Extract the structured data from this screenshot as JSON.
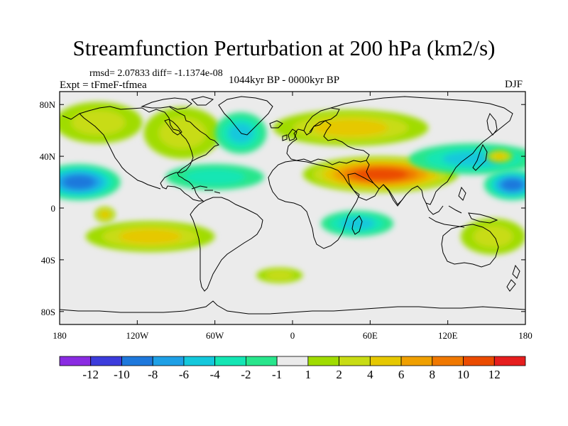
{
  "title": "Streamfunction Perturbation at 200 hPa (km2/s)",
  "stats_line": "rmsd= 2.07833  diff= -1.1374e-08",
  "experiment_label": "Expt = tFmeF-tfmea",
  "period_label": "1044kyr BP - 0000kyr BP",
  "season_label": "DJF",
  "map": {
    "projection": "cylindrical equidistant",
    "lon_ticks": [
      {
        "value": -180,
        "label": "180"
      },
      {
        "value": -120,
        "label": "120W"
      },
      {
        "value": -60,
        "label": "60W"
      },
      {
        "value": 0,
        "label": "0"
      },
      {
        "value": 60,
        "label": "60E"
      },
      {
        "value": 120,
        "label": "120E"
      },
      {
        "value": 180,
        "label": "180"
      }
    ],
    "lat_ticks": [
      {
        "value": 80,
        "label": "80N"
      },
      {
        "value": 40,
        "label": "40N"
      },
      {
        "value": 0,
        "label": "0"
      },
      {
        "value": -40,
        "label": "40S"
      },
      {
        "value": -80,
        "label": "80S"
      }
    ],
    "lat_range": [
      -90,
      90
    ],
    "lon_range": [
      -180,
      180
    ],
    "anomalies": [
      {
        "name": "north-pacific-west-high",
        "lon": -150,
        "lat": 66,
        "rlon": 34,
        "rlat": 16,
        "value": 2
      },
      {
        "name": "north-america-high",
        "lon": -85,
        "lat": 58,
        "rlon": 30,
        "rlat": 20,
        "value": 2
      },
      {
        "name": "north-atlantic-low",
        "lon": -40,
        "lat": 58,
        "rlon": 20,
        "rlat": 16,
        "value": -4
      },
      {
        "name": "subtropical-pacific-low",
        "lon": -165,
        "lat": 20,
        "rlon": 32,
        "rlat": 14,
        "value": -8
      },
      {
        "name": "tropical-atlantic-low",
        "lon": -60,
        "lat": 24,
        "rlon": 38,
        "rlat": 10,
        "value": -3
      },
      {
        "name": "south-pacific-high",
        "lon": -145,
        "lat": -5,
        "rlon": 8,
        "rlat": 6,
        "value": 4
      },
      {
        "name": "south-pacific-band-high",
        "lon": -110,
        "lat": -22,
        "rlon": 50,
        "rlat": 12,
        "value": 4
      },
      {
        "name": "southern-ocean-atlantic-high",
        "lon": -10,
        "lat": -52,
        "rlon": 18,
        "rlat": 6,
        "value": 2
      },
      {
        "name": "eurasia-high",
        "lon": 45,
        "lat": 62,
        "rlon": 60,
        "rlat": 14,
        "value": 4
      },
      {
        "name": "west-asia-high",
        "lon": 68,
        "lat": 26,
        "rlon": 60,
        "rlat": 14,
        "value": 10
      },
      {
        "name": "north-pacific-east-low",
        "lon": 140,
        "lat": 38,
        "rlon": 50,
        "rlat": 12,
        "value": -4
      },
      {
        "name": "west-pacific-tropical-low",
        "lon": 170,
        "lat": 18,
        "rlon": 22,
        "rlat": 12,
        "value": -8
      },
      {
        "name": "east-asia-high",
        "lon": 160,
        "lat": 40,
        "rlon": 10,
        "rlat": 5,
        "value": 4
      },
      {
        "name": "indian-ocean-low",
        "lon": 50,
        "lat": -12,
        "rlon": 28,
        "rlat": 10,
        "value": -4
      },
      {
        "name": "australia-high",
        "lon": 155,
        "lat": -22,
        "rlon": 25,
        "rlat": 14,
        "value": 2
      }
    ]
  },
  "colorbar": {
    "colors": [
      "#8a2be2",
      "#3c3cdc",
      "#1e78dc",
      "#1ea0e6",
      "#14c8dc",
      "#14e6b4",
      "#28e68c",
      "#ebebeb",
      "#a0dc00",
      "#c8dc14",
      "#e6c800",
      "#f0a000",
      "#f07800",
      "#eb4b00",
      "#e61e1e"
    ],
    "levels": [
      "-12",
      "-10",
      "-8",
      "-6",
      "-4",
      "-2",
      "-1",
      "1",
      "2",
      "4",
      "6",
      "8",
      "10",
      "12"
    ],
    "level_values": [
      -12,
      -10,
      -8,
      -6,
      -4,
      -2,
      -1,
      1,
      2,
      4,
      6,
      8,
      10,
      12
    ]
  }
}
